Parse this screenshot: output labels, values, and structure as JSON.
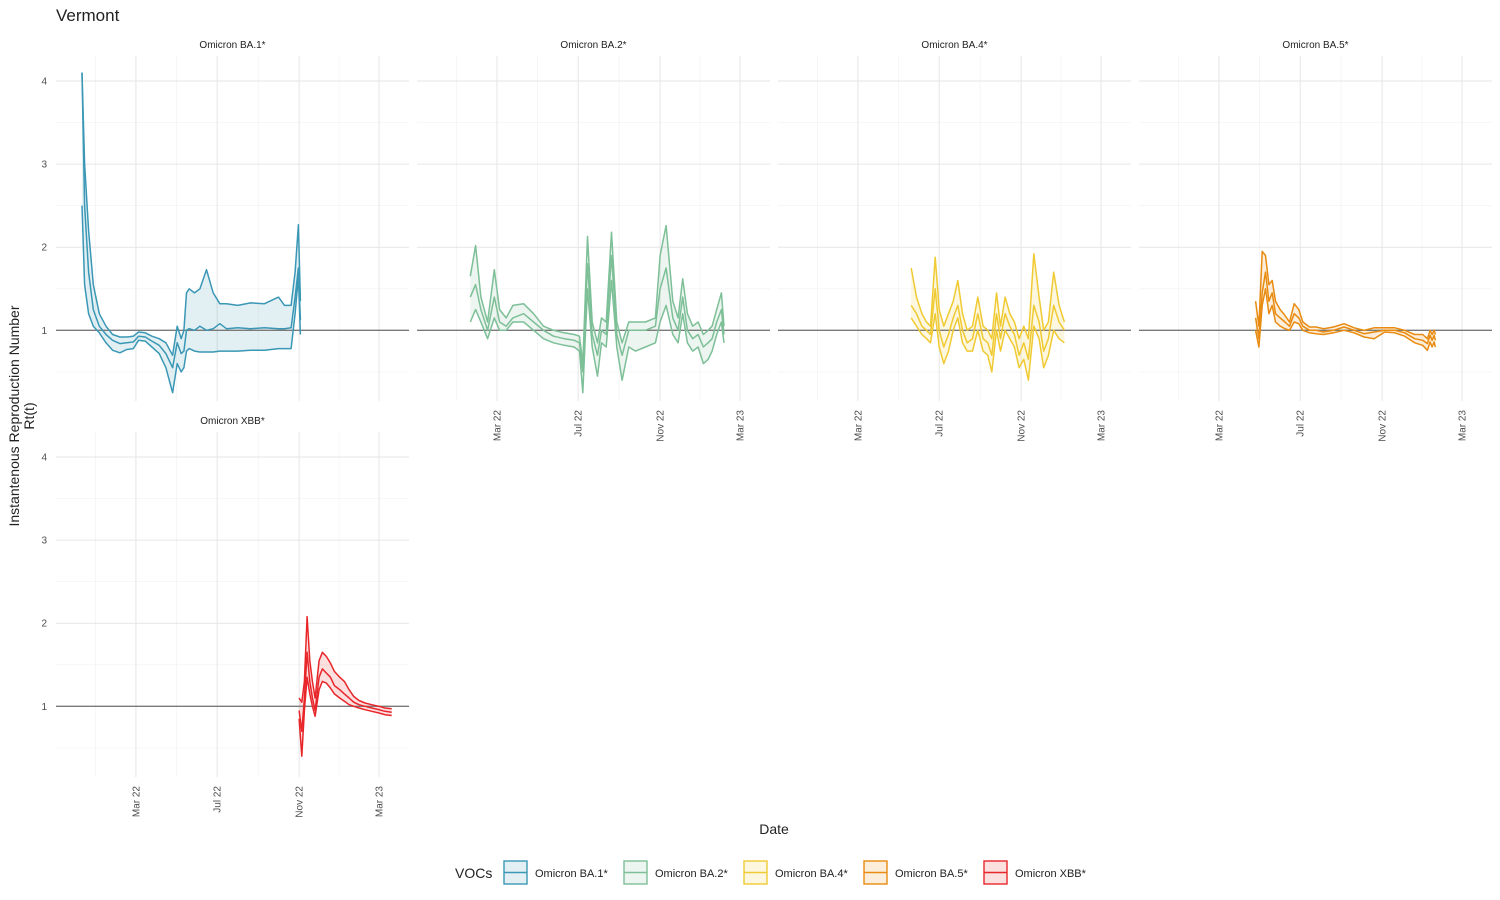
{
  "chart_data": {
    "type": "line",
    "title": "Vermont",
    "xlabel": "Date",
    "ylabel": "Instantenous Reproduction Number\nRt(t)",
    "ylim": [
      0.15,
      4.3
    ],
    "yticks": [
      1,
      2,
      3,
      4
    ],
    "ytick_labels": [
      "1",
      "2",
      "3",
      "4"
    ],
    "reference_line": 1,
    "x_ticks": [
      "2022-03-01",
      "2022-07-01",
      "2022-11-01",
      "2023-03-01"
    ],
    "x_tick_labels": [
      "Mar 22",
      "Jul 22",
      "Nov 22",
      "Mar 23"
    ],
    "xlim": [
      "2021-11-01",
      "2023-04-15"
    ],
    "grid": true,
    "legend": {
      "title": "VOCs",
      "position": "bottom",
      "entries": [
        "Omicron BA.1*",
        "Omicron BA.2*",
        "Omicron BA.4*",
        "Omicron BA.5*",
        "Omicron XBB*"
      ]
    },
    "panels": [
      {
        "name": "Omicron BA.1*",
        "color": "#3A97B5",
        "dates": [
          "2021-12-10",
          "2021-12-14",
          "2021-12-20",
          "2021-12-27",
          "2022-01-05",
          "2022-01-15",
          "2022-01-25",
          "2022-02-05",
          "2022-02-15",
          "2022-02-25",
          "2022-03-05",
          "2022-03-15",
          "2022-03-25",
          "2022-04-05",
          "2022-04-15",
          "2022-04-25",
          "2022-05-02",
          "2022-05-08",
          "2022-05-12",
          "2022-05-16",
          "2022-05-20",
          "2022-05-28",
          "2022-06-05",
          "2022-06-15",
          "2022-06-25",
          "2022-07-05",
          "2022-07-15",
          "2022-08-01",
          "2022-08-20",
          "2022-09-10",
          "2022-10-01",
          "2022-10-10",
          "2022-10-20",
          "2022-10-26",
          "2022-10-31",
          "2022-11-03"
        ],
        "mean": [
          4.1,
          2.5,
          1.7,
          1.25,
          1.05,
          0.95,
          0.88,
          0.84,
          0.85,
          0.86,
          0.93,
          0.92,
          0.87,
          0.82,
          0.72,
          0.55,
          0.85,
          0.72,
          0.75,
          1.0,
          1.02,
          1.0,
          1.05,
          1.0,
          1.02,
          1.08,
          1.02,
          1.03,
          1.02,
          1.03,
          1.02,
          1.02,
          1.03,
          1.4,
          1.75,
          1.12
        ],
        "lower": [
          2.5,
          1.55,
          1.2,
          1.05,
          0.97,
          0.85,
          0.76,
          0.73,
          0.77,
          0.78,
          0.88,
          0.87,
          0.8,
          0.72,
          0.55,
          0.25,
          0.6,
          0.5,
          0.55,
          0.75,
          0.78,
          0.75,
          0.74,
          0.74,
          0.74,
          0.75,
          0.75,
          0.75,
          0.76,
          0.76,
          0.78,
          0.78,
          0.78,
          1.2,
          1.65,
          0.95
        ],
        "upper": [
          4.1,
          3.0,
          2.2,
          1.55,
          1.2,
          1.05,
          0.95,
          0.92,
          0.92,
          0.93,
          0.98,
          0.97,
          0.93,
          0.9,
          0.85,
          0.7,
          1.05,
          0.9,
          1.0,
          1.45,
          1.5,
          1.45,
          1.5,
          1.73,
          1.45,
          1.32,
          1.32,
          1.3,
          1.33,
          1.32,
          1.4,
          1.3,
          1.3,
          1.7,
          2.27,
          1.35
        ]
      },
      {
        "name": "Omicron BA.2*",
        "color": "#7DBF97",
        "dates": [
          "2022-01-20",
          "2022-01-28",
          "2022-02-05",
          "2022-02-15",
          "2022-02-25",
          "2022-03-05",
          "2022-03-15",
          "2022-03-25",
          "2022-04-10",
          "2022-04-25",
          "2022-05-10",
          "2022-05-25",
          "2022-06-10",
          "2022-06-25",
          "2022-07-03",
          "2022-07-08",
          "2022-07-15",
          "2022-07-22",
          "2022-07-30",
          "2022-08-05",
          "2022-08-12",
          "2022-08-20",
          "2022-08-28",
          "2022-09-05",
          "2022-09-15",
          "2022-09-25",
          "2022-10-10",
          "2022-10-25",
          "2022-11-01",
          "2022-11-10",
          "2022-11-20",
          "2022-11-28",
          "2022-12-05",
          "2022-12-12",
          "2022-12-20",
          "2022-12-28",
          "2023-01-05",
          "2023-01-12",
          "2023-01-18",
          "2023-01-25",
          "2023-02-01",
          "2023-02-05"
        ],
        "mean": [
          1.4,
          1.55,
          1.25,
          1.0,
          1.4,
          1.1,
          1.05,
          1.15,
          1.2,
          1.1,
          1.0,
          0.93,
          0.9,
          0.88,
          0.85,
          0.5,
          1.8,
          0.95,
          0.7,
          1.0,
          0.95,
          1.9,
          0.95,
          0.7,
          1.0,
          1.0,
          1.0,
          1.05,
          1.5,
          1.75,
          1.15,
          1.0,
          1.4,
          1.0,
          0.9,
          0.95,
          0.8,
          0.85,
          0.9,
          1.1,
          1.25,
          0.95
        ],
        "lower": [
          1.1,
          1.25,
          1.1,
          0.9,
          1.15,
          1.0,
          1.0,
          1.1,
          1.1,
          1.0,
          0.9,
          0.85,
          0.82,
          0.8,
          0.75,
          0.25,
          1.5,
          0.8,
          0.45,
          0.85,
          0.8,
          1.6,
          0.8,
          0.4,
          0.8,
          0.75,
          0.8,
          0.85,
          1.1,
          1.3,
          0.95,
          0.85,
          1.2,
          0.85,
          0.75,
          0.8,
          0.6,
          0.65,
          0.75,
          0.95,
          1.1,
          0.85
        ],
        "upper": [
          1.65,
          2.02,
          1.4,
          1.1,
          1.73,
          1.25,
          1.15,
          1.3,
          1.32,
          1.2,
          1.05,
          1.0,
          0.97,
          0.95,
          0.93,
          0.6,
          2.13,
          1.1,
          0.85,
          1.15,
          1.1,
          2.18,
          1.1,
          0.85,
          1.1,
          1.1,
          1.1,
          1.15,
          1.9,
          2.26,
          1.35,
          1.15,
          1.62,
          1.2,
          1.05,
          1.1,
          0.95,
          1.0,
          1.05,
          1.25,
          1.45,
          1.05
        ]
      },
      {
        "name": "Omicron BA.4*",
        "color": "#F0CA32",
        "dates": [
          "2022-05-20",
          "2022-05-28",
          "2022-06-05",
          "2022-06-12",
          "2022-06-18",
          "2022-06-25",
          "2022-07-01",
          "2022-07-08",
          "2022-07-15",
          "2022-07-22",
          "2022-07-29",
          "2022-08-05",
          "2022-08-12",
          "2022-08-20",
          "2022-08-28",
          "2022-09-05",
          "2022-09-12",
          "2022-09-18",
          "2022-09-25",
          "2022-10-01",
          "2022-10-08",
          "2022-10-15",
          "2022-10-22",
          "2022-10-29",
          "2022-11-05",
          "2022-11-12",
          "2022-11-20",
          "2022-11-28",
          "2022-12-05",
          "2022-12-12",
          "2022-12-20",
          "2022-12-28",
          "2023-01-05"
        ],
        "mean": [
          1.3,
          1.2,
          1.05,
          1.0,
          0.95,
          1.5,
          1.0,
          0.8,
          0.95,
          1.15,
          1.3,
          1.0,
          0.85,
          0.9,
          1.2,
          0.9,
          0.85,
          0.7,
          1.2,
          0.9,
          1.2,
          1.05,
          0.95,
          0.7,
          0.85,
          0.65,
          1.3,
          1.1,
          0.75,
          0.9,
          1.3,
          1.1,
          1.0
        ],
        "lower": [
          1.15,
          1.05,
          0.95,
          0.9,
          0.85,
          1.2,
          0.8,
          0.6,
          0.75,
          1.0,
          1.15,
          0.85,
          0.75,
          0.75,
          1.0,
          0.75,
          0.7,
          0.5,
          1.0,
          0.75,
          1.0,
          0.9,
          0.8,
          0.55,
          0.65,
          0.4,
          1.05,
          0.9,
          0.55,
          0.7,
          1.0,
          0.9,
          0.85
        ],
        "upper": [
          1.75,
          1.4,
          1.2,
          1.1,
          1.05,
          1.88,
          1.25,
          1.05,
          1.2,
          1.35,
          1.6,
          1.2,
          1.0,
          1.05,
          1.4,
          1.05,
          1.0,
          0.9,
          1.45,
          1.05,
          1.4,
          1.2,
          1.1,
          0.9,
          1.05,
          0.9,
          1.92,
          1.4,
          1.0,
          1.1,
          1.7,
          1.3,
          1.1
        ]
      },
      {
        "name": "Omicron BA.5*",
        "color": "#E88B10",
        "dates": [
          "2022-04-25",
          "2022-04-30",
          "2022-05-05",
          "2022-05-10",
          "2022-05-15",
          "2022-05-20",
          "2022-05-25",
          "2022-06-01",
          "2022-06-08",
          "2022-06-15",
          "2022-06-22",
          "2022-06-29",
          "2022-07-05",
          "2022-07-15",
          "2022-07-25",
          "2022-08-05",
          "2022-08-20",
          "2022-09-05",
          "2022-09-20",
          "2022-10-05",
          "2022-10-20",
          "2022-11-05",
          "2022-11-20",
          "2022-12-05",
          "2022-12-20",
          "2023-01-01",
          "2023-01-08",
          "2023-01-12",
          "2023-01-15",
          "2023-01-18",
          "2023-01-20"
        ],
        "mean": [
          1.15,
          0.9,
          1.45,
          1.7,
          1.35,
          1.45,
          1.2,
          1.15,
          1.1,
          1.05,
          1.2,
          1.15,
          1.05,
          1.0,
          1.0,
          0.98,
          1.0,
          1.04,
          1.0,
          0.96,
          0.98,
          1.0,
          1.0,
          0.97,
          0.9,
          0.88,
          0.84,
          0.94,
          0.88,
          0.94,
          0.88
        ],
        "lower": [
          1.0,
          0.8,
          1.3,
          1.5,
          1.2,
          1.3,
          1.1,
          1.05,
          1.02,
          1.0,
          1.1,
          1.08,
          1.0,
          0.97,
          0.96,
          0.95,
          0.97,
          1.0,
          0.97,
          0.92,
          0.9,
          0.98,
          0.97,
          0.93,
          0.85,
          0.82,
          0.76,
          0.86,
          0.8,
          0.86,
          0.8
        ],
        "upper": [
          1.35,
          1.05,
          1.95,
          1.9,
          1.55,
          1.6,
          1.35,
          1.25,
          1.18,
          1.1,
          1.32,
          1.25,
          1.1,
          1.04,
          1.04,
          1.02,
          1.04,
          1.08,
          1.03,
          1.0,
          1.03,
          1.03,
          1.03,
          1.0,
          0.95,
          0.95,
          0.9,
          1.0,
          0.95,
          1.0,
          0.95
        ]
      },
      {
        "name": "Omicron XBB*",
        "color": "#E8262A",
        "dates": [
          "2022-11-01",
          "2022-11-05",
          "2022-11-09",
          "2022-11-13",
          "2022-11-17",
          "2022-11-21",
          "2022-11-25",
          "2022-12-01",
          "2022-12-06",
          "2022-12-12",
          "2022-12-18",
          "2022-12-24",
          "2023-01-01",
          "2023-01-08",
          "2023-01-15",
          "2023-01-22",
          "2023-01-30",
          "2023-02-08",
          "2023-02-18",
          "2023-03-01",
          "2023-03-10",
          "2023-03-20"
        ],
        "mean": [
          0.95,
          0.7,
          1.1,
          1.65,
          1.3,
          1.1,
          0.95,
          1.35,
          1.45,
          1.4,
          1.35,
          1.25,
          1.2,
          1.15,
          1.1,
          1.05,
          1.02,
          1.0,
          0.98,
          0.96,
          0.94,
          0.93
        ],
        "lower": [
          0.85,
          0.4,
          0.95,
          1.35,
          1.15,
          1.0,
          0.88,
          1.2,
          1.3,
          1.28,
          1.22,
          1.15,
          1.1,
          1.06,
          1.02,
          1.0,
          0.98,
          0.96,
          0.94,
          0.92,
          0.9,
          0.89
        ],
        "upper": [
          1.1,
          1.05,
          1.3,
          2.08,
          1.55,
          1.3,
          1.1,
          1.55,
          1.65,
          1.6,
          1.52,
          1.42,
          1.35,
          1.3,
          1.2,
          1.12,
          1.07,
          1.04,
          1.02,
          1.0,
          0.98,
          0.97
        ]
      }
    ]
  }
}
